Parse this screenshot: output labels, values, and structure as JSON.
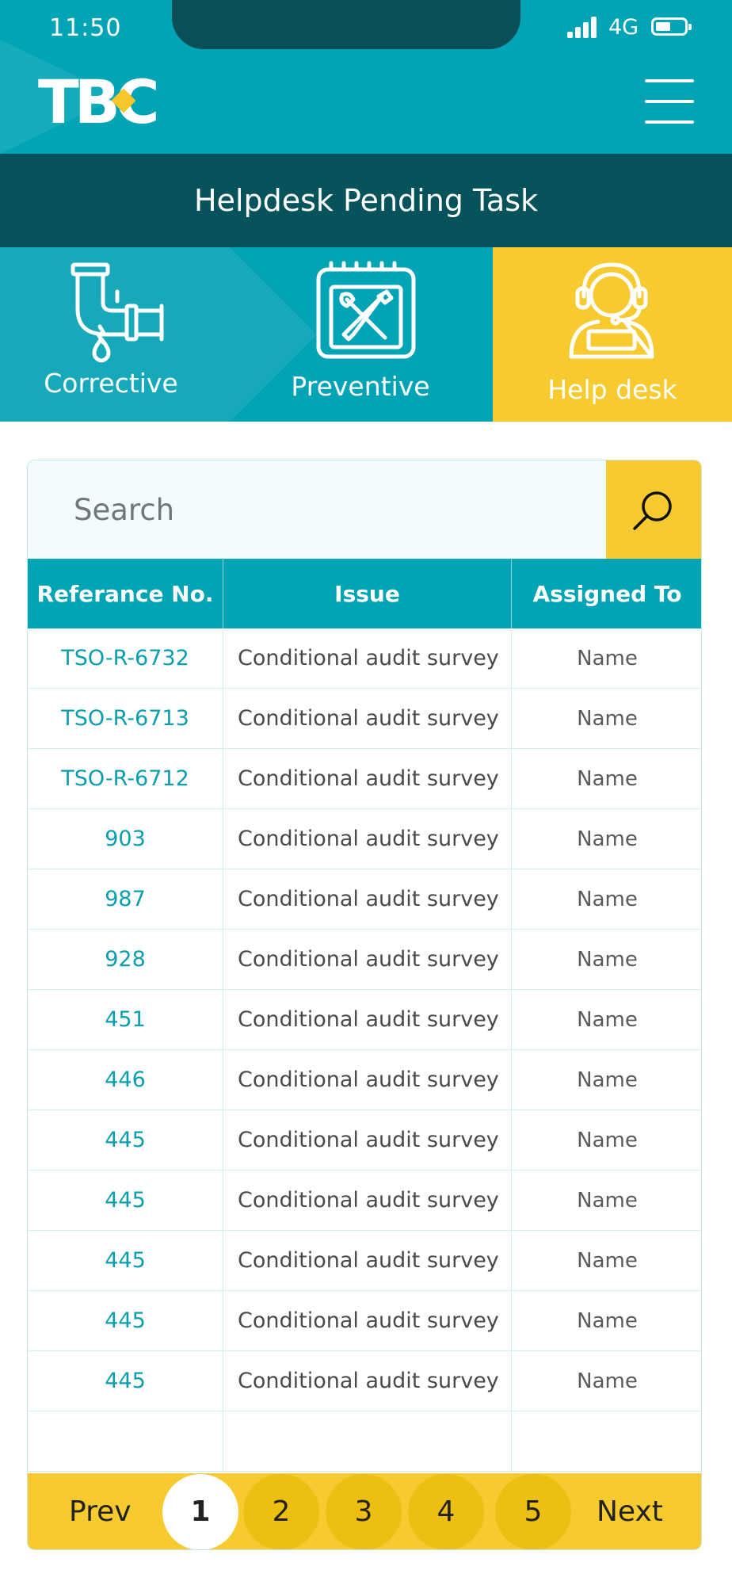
{
  "status_bar": {
    "time": "11:50",
    "network": "4G"
  },
  "header": {
    "logo_text": "TBC",
    "title": "Helpdesk Pending Task"
  },
  "tabs": [
    {
      "label": "Corrective",
      "icon": "pipe-leak-icon"
    },
    {
      "label": "Preventive",
      "icon": "calendar-tools-icon"
    },
    {
      "label": "Help desk",
      "icon": "headset-agent-icon",
      "active": true
    }
  ],
  "search": {
    "placeholder": "Search"
  },
  "table": {
    "headers": [
      "Referance No.",
      "Issue",
      "Assigned To"
    ],
    "rows": [
      {
        "ref": "TSO-R-6732",
        "issue": "Conditional audit survey",
        "assigned": "Name"
      },
      {
        "ref": "TSO-R-6713",
        "issue": "Conditional audit survey",
        "assigned": "Name"
      },
      {
        "ref": "TSO-R-6712",
        "issue": "Conditional audit survey",
        "assigned": "Name"
      },
      {
        "ref": "903",
        "issue": "Conditional audit survey",
        "assigned": "Name"
      },
      {
        "ref": "987",
        "issue": "Conditional audit survey",
        "assigned": "Name"
      },
      {
        "ref": "928",
        "issue": "Conditional audit survey",
        "assigned": "Name"
      },
      {
        "ref": "451",
        "issue": "Conditional audit survey",
        "assigned": "Name"
      },
      {
        "ref": "446",
        "issue": "Conditional audit survey",
        "assigned": "Name"
      },
      {
        "ref": "445",
        "issue": "Conditional audit survey",
        "assigned": "Name"
      },
      {
        "ref": "445",
        "issue": "Conditional audit survey",
        "assigned": "Name"
      },
      {
        "ref": "445",
        "issue": "Conditional audit survey",
        "assigned": "Name"
      },
      {
        "ref": "445",
        "issue": "Conditional audit survey",
        "assigned": "Name"
      },
      {
        "ref": "445",
        "issue": "Conditional audit survey",
        "assigned": "Name"
      }
    ]
  },
  "pagination": {
    "prev": "Prev",
    "next": "Next",
    "pages": [
      "1",
      "2",
      "3",
      "4",
      "5"
    ],
    "current": "1"
  },
  "colors": {
    "teal": "#00a4b5",
    "dark_teal": "#06535c",
    "yellow": "#f7ca30"
  }
}
